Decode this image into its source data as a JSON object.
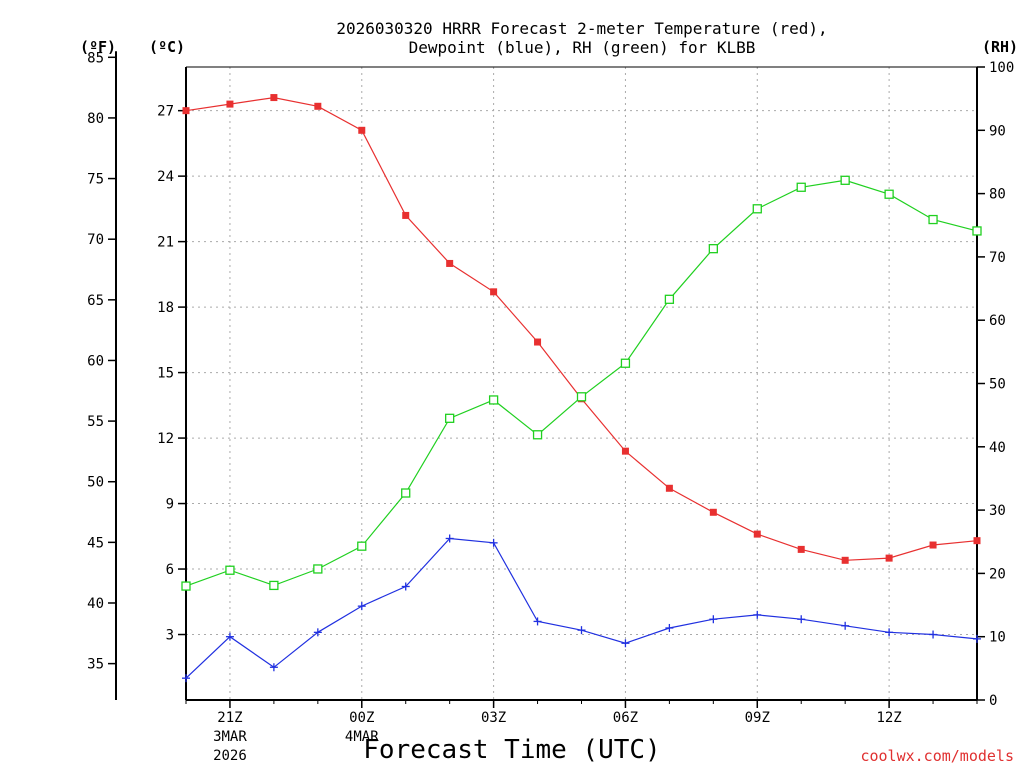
{
  "chart_data": {
    "type": "line",
    "title_line1": "2026030320 HRRR Forecast 2-meter Temperature (red),",
    "title_line2": "Dewpoint (blue), RH (green) for KLBB",
    "xlabel": "Forecast Time (UTC)",
    "credit": "coolwx.com/models",
    "left_unit_f": "(ºF)",
    "left_unit_c": "(ºC)",
    "right_unit": "(RH)",
    "x_hours": [
      20,
      21,
      22,
      23,
      24,
      25,
      26,
      27,
      28,
      29,
      30,
      31,
      32,
      33,
      34,
      35,
      36,
      37,
      38
    ],
    "xlim": [
      20,
      38
    ],
    "x_ticks": [
      {
        "hour": 21,
        "label": "21Z",
        "sub1": "3MAR",
        "sub2": "2026"
      },
      {
        "hour": 24,
        "label": "00Z",
        "sub1": "4MAR",
        "sub2": ""
      },
      {
        "hour": 27,
        "label": "03Z",
        "sub1": "",
        "sub2": ""
      },
      {
        "hour": 30,
        "label": "06Z",
        "sub1": "",
        "sub2": ""
      },
      {
        "hour": 33,
        "label": "09Z",
        "sub1": "",
        "sub2": ""
      },
      {
        "hour": 36,
        "label": "12Z",
        "sub1": "",
        "sub2": ""
      }
    ],
    "y_celsius": {
      "lim": [
        0,
        29
      ],
      "ticks": [
        3,
        6,
        9,
        12,
        15,
        18,
        21,
        24,
        27
      ]
    },
    "y_fahrenheit": {
      "ticks": [
        35,
        40,
        45,
        50,
        55,
        60,
        65,
        70,
        75,
        80,
        85
      ]
    },
    "y_rh": {
      "lim": [
        0,
        100
      ],
      "ticks": [
        0,
        10,
        20,
        30,
        40,
        50,
        60,
        70,
        80,
        90,
        100
      ]
    },
    "series": [
      {
        "name": "Temperature",
        "axis": "celsius",
        "color": "#e83030",
        "marker": "filled-square",
        "values": [
          27.0,
          27.3,
          27.6,
          27.2,
          26.1,
          22.2,
          20.0,
          18.7,
          16.4,
          13.8,
          11.4,
          9.7,
          8.6,
          7.6,
          6.9,
          6.4,
          6.5,
          7.1,
          7.3
        ]
      },
      {
        "name": "Dewpoint",
        "axis": "celsius",
        "color": "#2030e0",
        "marker": "plus",
        "values": [
          1.0,
          2.9,
          1.5,
          3.1,
          4.3,
          5.2,
          7.4,
          7.2,
          3.6,
          3.2,
          2.6,
          3.3,
          3.7,
          3.9,
          3.7,
          3.4,
          3.1,
          3.0,
          2.8
        ]
      },
      {
        "name": "RH",
        "axis": "rh",
        "color": "#20d020",
        "marker": "open-square",
        "values": [
          18,
          20.5,
          18.1,
          20.7,
          24.3,
          32.7,
          44.5,
          47.4,
          41.9,
          47.9,
          53.2,
          63.3,
          71.3,
          77.6,
          81,
          82.1,
          79.9,
          75.9,
          74.1
        ]
      }
    ]
  }
}
